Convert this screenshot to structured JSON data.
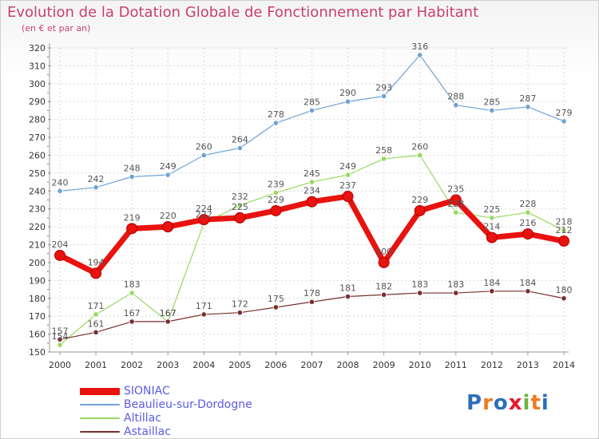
{
  "title": "Evolution de la Dotation Globale de Fonctionnement par Habitant",
  "subtitle": "(en € et par an)",
  "logo": {
    "text": "Proxiti"
  },
  "colors": {
    "grid": "#d8d8d8",
    "axis": "#999999",
    "tick_text": "#333333",
    "value_text": "#555555"
  },
  "chart_data": {
    "type": "line",
    "title": "Evolution de la Dotation Globale de Fonctionnement par Habitant",
    "subtitle": "(en € et par an)",
    "xlabel": "",
    "ylabel": "",
    "ylim": [
      150,
      320
    ],
    "ytick_step": 10,
    "grid": true,
    "legend_position": "bottom-left",
    "categories": [
      "2000",
      "2001",
      "2002",
      "2003",
      "2004",
      "2005",
      "2006",
      "2007",
      "2008",
      "2009",
      "2010",
      "2011",
      "2012",
      "2013",
      "2014"
    ],
    "series": [
      {
        "name": "SIONIAC",
        "color": "#e8120e",
        "width": 7,
        "values": [
          204,
          194,
          219,
          220,
          224,
          225,
          229,
          234,
          237,
          200,
          229,
          235,
          214,
          216,
          212
        ]
      },
      {
        "name": "Beaulieu-sur-Dordogne",
        "color": "#6fa2d4",
        "width": 1.2,
        "values": [
          240,
          242,
          248,
          249,
          260,
          264,
          278,
          285,
          290,
          293,
          316,
          288,
          285,
          287,
          279
        ]
      },
      {
        "name": "Altillac",
        "color": "#98d860",
        "width": 1.2,
        "values": [
          154,
          171,
          183,
          167,
          222,
          232,
          239,
          245,
          249,
          258,
          260,
          228,
          225,
          228,
          218
        ]
      },
      {
        "name": "Astaillac",
        "color": "#7a2e2e",
        "width": 1.2,
        "values": [
          157,
          161,
          167,
          167,
          171,
          172,
          175,
          178,
          181,
          182,
          183,
          183,
          184,
          184,
          180
        ]
      }
    ]
  }
}
